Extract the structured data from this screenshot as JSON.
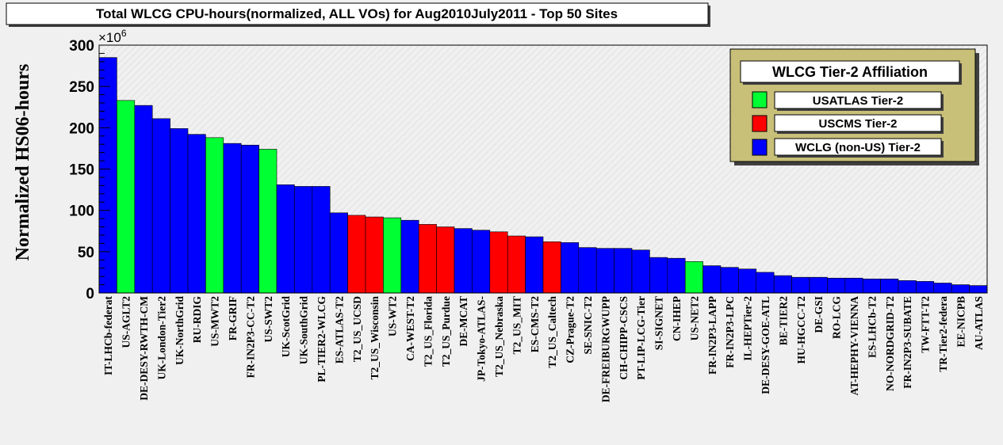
{
  "chart_data": {
    "type": "bar",
    "title": "Total WLCG CPU-hours(normalized, ALL VOs) for Aug2010July2011 - Top 50 Sites",
    "ylabel": "Normalized HS06-hours",
    "yscale_label": "×10",
    "yscale_exp": "6",
    "ylim": [
      0,
      300
    ],
    "yticks": [
      0,
      50,
      100,
      150,
      200,
      250,
      300
    ],
    "categories": [
      "IT-LHCb-federat",
      "US-AGLT2",
      "DE-DESY-RWTH-CM",
      "UK-London-Tier2",
      "UK-NorthGrid",
      "RU-RDIG",
      "US-MWT2",
      "FR-GRIF",
      "FR-IN2P3-CC-T2",
      "US-SWT2",
      "UK-ScotGrid",
      "UK-SouthGrid",
      "PL-TIER2-WLCG",
      "ES-ATLAS-T2",
      "T2_US_UCSD",
      "T2_US_Wisconsin",
      "US-WT2",
      "CA-WEST-T2",
      "T2_US_Florida",
      "T2_US_Purdue",
      "DE-MCAT",
      "JP-Tokyo-ATLAS-",
      "T2_US_Nebraska",
      "T2_US_MIT",
      "ES-CMS-T2",
      "T2_US_Caltech",
      "CZ-Prague-T2",
      "SE-SNIC-T2",
      "DE-FREIBURGWUPP",
      "CH-CHIPP-CSCS",
      "PT-LIP-LCG-Tier",
      "SI-SIGNET",
      "CN-IHEP",
      "US-NET2",
      "FR-IN2P3-LAPP",
      "FR-IN2P3-LPC",
      "IL-HEPTier-2",
      "DE-DESY-GOE-ATL",
      "BE-TIER2",
      "HU-HGCC-T2",
      "DE-GSI",
      "RO-LCG",
      "AT-HEPHY-VIENNA",
      "ES-LHCb-T2",
      "NO-NORDGRID-T2",
      "FR-IN2P3-SUBATE",
      "TW-FTT-T2",
      "TR-Tier2-federa",
      "EE-NICPB",
      "AU-ATLAS"
    ],
    "values": [
      285,
      233,
      227,
      211,
      199,
      192,
      188,
      181,
      179,
      174,
      131,
      129,
      129,
      97,
      94,
      92,
      91,
      88,
      83,
      80,
      78,
      76,
      74,
      69,
      68,
      62,
      61,
      55,
      54,
      54,
      52,
      43,
      42,
      38,
      33,
      31,
      29,
      25,
      21,
      19,
      19,
      18,
      18,
      17,
      17,
      15,
      14,
      12,
      10,
      9
    ],
    "affiliations": [
      "WCLG",
      "USATLAS",
      "WCLG",
      "WCLG",
      "WCLG",
      "WCLG",
      "USATLAS",
      "WCLG",
      "WCLG",
      "USATLAS",
      "WCLG",
      "WCLG",
      "WCLG",
      "WCLG",
      "USCMS",
      "USCMS",
      "USATLAS",
      "WCLG",
      "USCMS",
      "USCMS",
      "WCLG",
      "WCLG",
      "USCMS",
      "USCMS",
      "WCLG",
      "USCMS",
      "WCLG",
      "WCLG",
      "WCLG",
      "WCLG",
      "WCLG",
      "WCLG",
      "WCLG",
      "USATLAS",
      "WCLG",
      "WCLG",
      "WCLG",
      "WCLG",
      "WCLG",
      "WCLG",
      "WCLG",
      "WCLG",
      "WCLG",
      "WCLG",
      "WCLG",
      "WCLG",
      "WCLG",
      "WCLG",
      "WCLG",
      "WCLG"
    ],
    "legend": {
      "title": "WLCG Tier-2 Affiliation",
      "placement": "top-right",
      "entries": [
        {
          "key": "USATLAS",
          "label": "USATLAS Tier-2",
          "color": "#00ff33"
        },
        {
          "key": "USCMS",
          "label": "USCMS Tier-2",
          "color": "#ff0000"
        },
        {
          "key": "WCLG",
          "label": "WCLG (non-US) Tier-2",
          "color": "#0000ff"
        }
      ]
    },
    "colors": {
      "background": "#f0f0f0",
      "legend_fill": "#c8bf78",
      "bar_edge": "#000000"
    },
    "grid": false
  }
}
